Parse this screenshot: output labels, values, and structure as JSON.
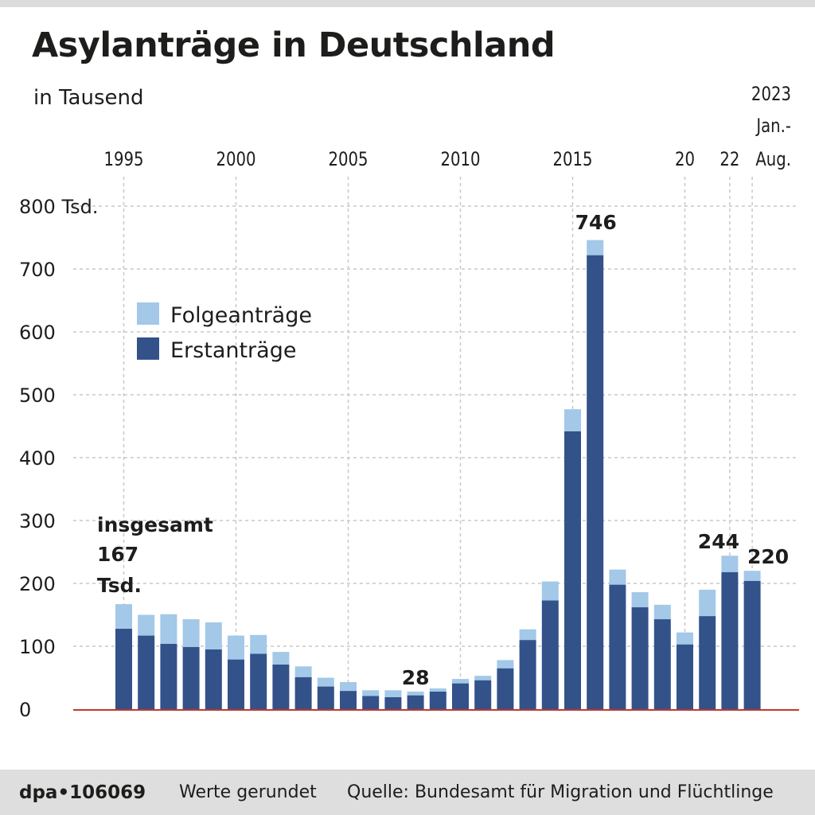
{
  "header": {
    "title": "Asylanträge in Deutschland",
    "subtitle": "in Tausend"
  },
  "footer": {
    "id": "dpa•106069",
    "note": "Werte gerundet",
    "source": "Quelle: Bundesamt für Migration und Flüchtlinge"
  },
  "colors": {
    "erst": "#33528a",
    "folge": "#a3c8e8",
    "grid": "#c8c8c8",
    "baseline": "#c0392b"
  },
  "chart_data": {
    "type": "bar",
    "stacked": true,
    "title": "Asylanträge in Deutschland",
    "subtitle": "in Tausend",
    "ylim": [
      0,
      800
    ],
    "y_ticks": [
      {
        "value": 0,
        "label": "0"
      },
      {
        "value": 100,
        "label": "100"
      },
      {
        "value": 200,
        "label": "200"
      },
      {
        "value": 300,
        "label": "300"
      },
      {
        "value": 400,
        "label": "400"
      },
      {
        "value": 500,
        "label": "500"
      },
      {
        "value": 600,
        "label": "600"
      },
      {
        "value": 700,
        "label": "700"
      },
      {
        "value": 800,
        "label": "800 Tsd."
      }
    ],
    "x_ticks": [
      {
        "index": 0,
        "label": "1995",
        "grid": true
      },
      {
        "index": 5,
        "label": "2000",
        "grid": true
      },
      {
        "index": 10,
        "label": "2005",
        "grid": true
      },
      {
        "index": 15,
        "label": "2010",
        "grid": true
      },
      {
        "index": 20,
        "label": "2015",
        "grid": true
      },
      {
        "index": 25,
        "label": "20",
        "grid": true
      },
      {
        "index": 27,
        "label": "22",
        "grid": true
      },
      {
        "index": 28,
        "label": "",
        "grid": true
      }
    ],
    "last_period_label": [
      "2023",
      "Jan.-",
      "Aug."
    ],
    "categories": [
      "1995",
      "1996",
      "1997",
      "1998",
      "1999",
      "2000",
      "2001",
      "2002",
      "2003",
      "2004",
      "2005",
      "2006",
      "2007",
      "2008",
      "2009",
      "2010",
      "2011",
      "2012",
      "2013",
      "2014",
      "2015",
      "2016",
      "2017",
      "2018",
      "2019",
      "2020",
      "2021",
      "2022",
      "2023 Jan.-Aug."
    ],
    "series": [
      {
        "name": "Erstanträge",
        "values": [
          128,
          117,
          104,
          99,
          95,
          79,
          88,
          71,
          51,
          36,
          29,
          21,
          19,
          22,
          28,
          41,
          46,
          65,
          110,
          173,
          442,
          722,
          198,
          162,
          143,
          103,
          148,
          218,
          204
        ]
      },
      {
        "name": "Folgeanträge",
        "values": [
          39,
          33,
          47,
          44,
          43,
          38,
          30,
          20,
          17,
          14,
          14,
          9,
          11,
          6,
          5,
          7,
          7,
          13,
          17,
          30,
          35,
          24,
          24,
          24,
          23,
          19,
          42,
          26,
          16
        ]
      }
    ],
    "totals": [
      167,
      150,
      151,
      143,
      138,
      117,
      118,
      91,
      68,
      50,
      43,
      30,
      30,
      28,
      33,
      48,
      53,
      78,
      127,
      203,
      477,
      746,
      222,
      186,
      166,
      122,
      190,
      244,
      220
    ],
    "legend": {
      "position": "upper-left",
      "entries": [
        "Folgeanträge",
        "Erstanträge"
      ]
    },
    "annotations": {
      "first": [
        "insgesamt",
        "167",
        "Tsd."
      ],
      "min": "28",
      "peak": "746",
      "y2022": "244",
      "y2023": "220"
    }
  }
}
